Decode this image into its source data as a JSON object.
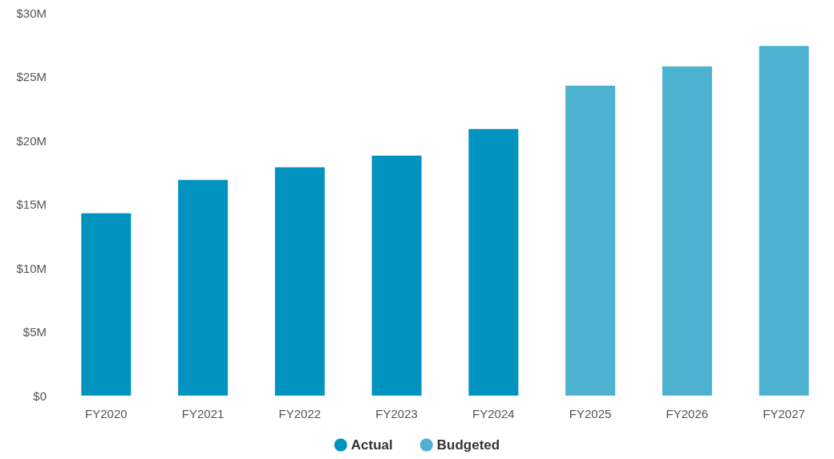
{
  "chart_data": {
    "type": "bar",
    "categories": [
      "FY2020",
      "FY2021",
      "FY2022",
      "FY2023",
      "FY2024",
      "FY2025",
      "FY2026",
      "FY2027"
    ],
    "series": [
      {
        "name": "Actual",
        "color": "#0093bf",
        "values": [
          14.3,
          16.9,
          17.9,
          18.8,
          20.9,
          null,
          null,
          null
        ]
      },
      {
        "name": "Budgeted",
        "color": "#4db2d0",
        "values": [
          null,
          null,
          null,
          null,
          null,
          24.3,
          25.8,
          27.4
        ]
      }
    ],
    "ylim": [
      0,
      30
    ],
    "yticks": [
      {
        "value": 0,
        "label": "$0"
      },
      {
        "value": 5,
        "label": "$5M"
      },
      {
        "value": 10,
        "label": "$10M"
      },
      {
        "value": 15,
        "label": "$15M"
      },
      {
        "value": 20,
        "label": "$20M"
      },
      {
        "value": 25,
        "label": "$25M"
      },
      {
        "value": 30,
        "label": "$30M"
      }
    ],
    "grid": false,
    "legend": "bottom"
  }
}
